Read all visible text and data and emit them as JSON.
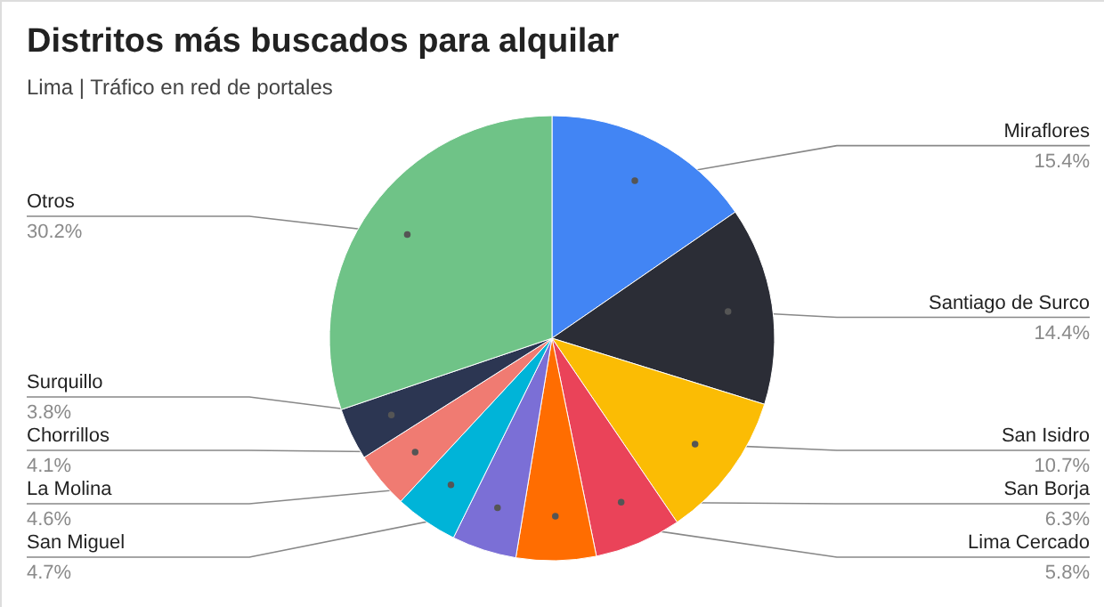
{
  "chart_data": {
    "type": "pie",
    "title": "Distritos más buscados para alquilar",
    "subtitle": "Lima | Tráfico en red de portales",
    "categories": [
      "Miraflores",
      "Santiago de Surco",
      "San Isidro",
      "San Borja",
      "Lima Cercado",
      "San Miguel",
      "La Molina",
      "Chorrillos",
      "Surquillo",
      "Otros"
    ],
    "values": [
      15.4,
      14.4,
      10.7,
      6.3,
      5.8,
      4.7,
      4.6,
      4.1,
      3.8,
      30.2
    ],
    "value_labels": [
      "15.4%",
      "14.4%",
      "10.7%",
      "6.3%",
      "5.8%",
      "4.7%",
      "4.6%",
      "4.1%",
      "3.8%",
      "30.2%"
    ],
    "colors": [
      "#4285f4",
      "#2b2d36",
      "#fbbc04",
      "#ea4359",
      "#ff6d01",
      "#7b6fd6",
      "#00b4d8",
      "#f07b72",
      "#2c3652",
      "#6fc387"
    ]
  }
}
